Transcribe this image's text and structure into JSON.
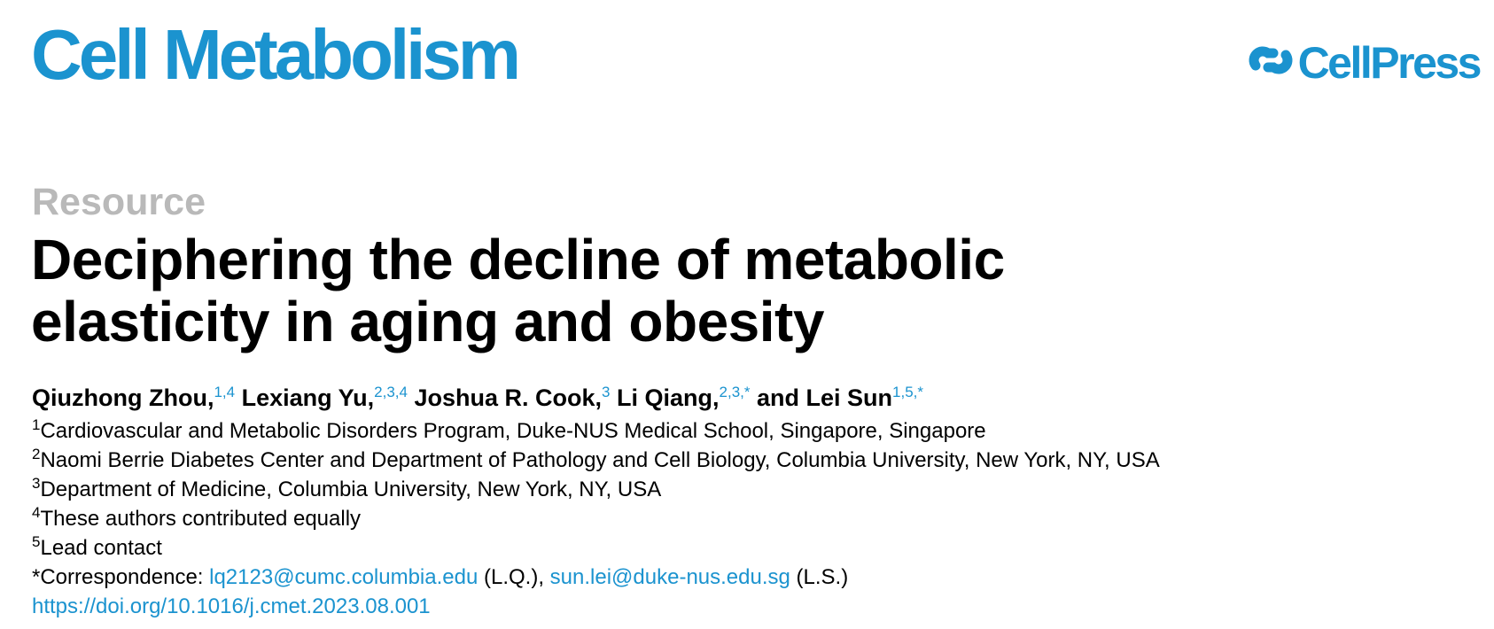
{
  "journal": {
    "name": "Cell Metabolism"
  },
  "publisher": {
    "name": "CellPress",
    "icon": "cellpress-logo-icon"
  },
  "colors": {
    "brand": "#1b93cf",
    "type_label": "#b9b9b9",
    "text": "#000000"
  },
  "article": {
    "type": "Resource",
    "title_line1": "Deciphering the decline of metabolic",
    "title_line2": "elasticity in aging and obesity"
  },
  "authors": [
    {
      "name": "Qiuzhong Zhou,",
      "marks": "1,4"
    },
    {
      "name": "Lexiang Yu,",
      "marks": "2,3,4"
    },
    {
      "name": "Joshua R. Cook,",
      "marks": "3"
    },
    {
      "name": "Li Qiang,",
      "marks": "2,3,*"
    },
    {
      "name": "and Lei Sun",
      "marks": "1,5,*"
    }
  ],
  "affiliations": [
    {
      "num": "1",
      "text": "Cardiovascular and Metabolic Disorders Program, Duke-NUS Medical School, Singapore, Singapore"
    },
    {
      "num": "2",
      "text": "Naomi Berrie Diabetes Center and Department of Pathology and Cell Biology, Columbia University, New York, NY, USA"
    },
    {
      "num": "3",
      "text": "Department of Medicine, Columbia University, New York, NY, USA"
    },
    {
      "num": "4",
      "text": "These authors contributed equally"
    },
    {
      "num": "5",
      "text": "Lead contact"
    }
  ],
  "correspondence": {
    "label": "*Correspondence: ",
    "email1": "lq2123@cumc.columbia.edu",
    "initials1": " (L.Q.), ",
    "email2": "sun.lei@duke-nus.edu.sg",
    "initials2": " (L.S.)"
  },
  "doi": "https://doi.org/10.1016/j.cmet.2023.08.001"
}
